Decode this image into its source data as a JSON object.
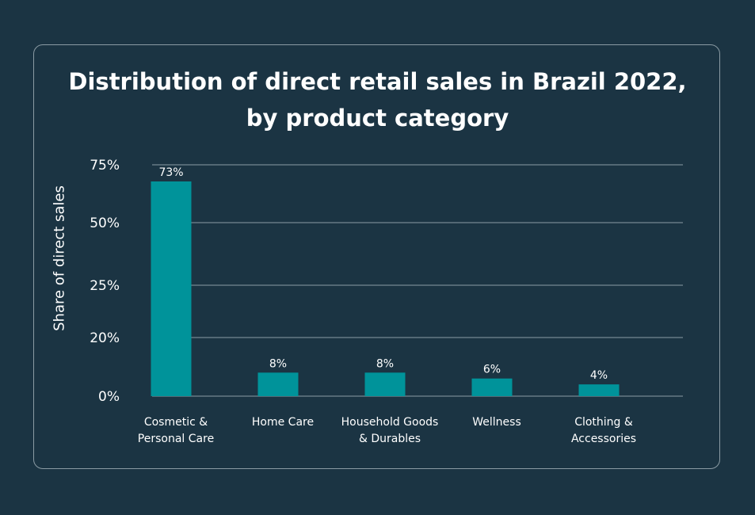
{
  "chart_data": {
    "type": "bar",
    "title_lines": [
      "Distribution of direct retail sales in Brazil 2022,",
      "by product category"
    ],
    "ylabel": "Share  of direct sales",
    "xlabel": "",
    "yticks": [
      "0%",
      "20%",
      "25%",
      "50%",
      "75%"
    ],
    "categories": [
      [
        "Cosmetic &",
        "Personal Care"
      ],
      [
        "Home Care"
      ],
      [
        "Household Goods",
        "& Durables"
      ],
      [
        "Wellness"
      ],
      [
        "Clothing &",
        "Accessories"
      ]
    ],
    "values": [
      73,
      8,
      8,
      6,
      4
    ],
    "value_labels": [
      "73%",
      "8%",
      "8%",
      "6%",
      "4%"
    ],
    "bar_color": "#00939a",
    "grid": true
  },
  "colors": {
    "background": "#1b3443",
    "gridline": "#8b9ba4",
    "text": "#ffffff"
  }
}
